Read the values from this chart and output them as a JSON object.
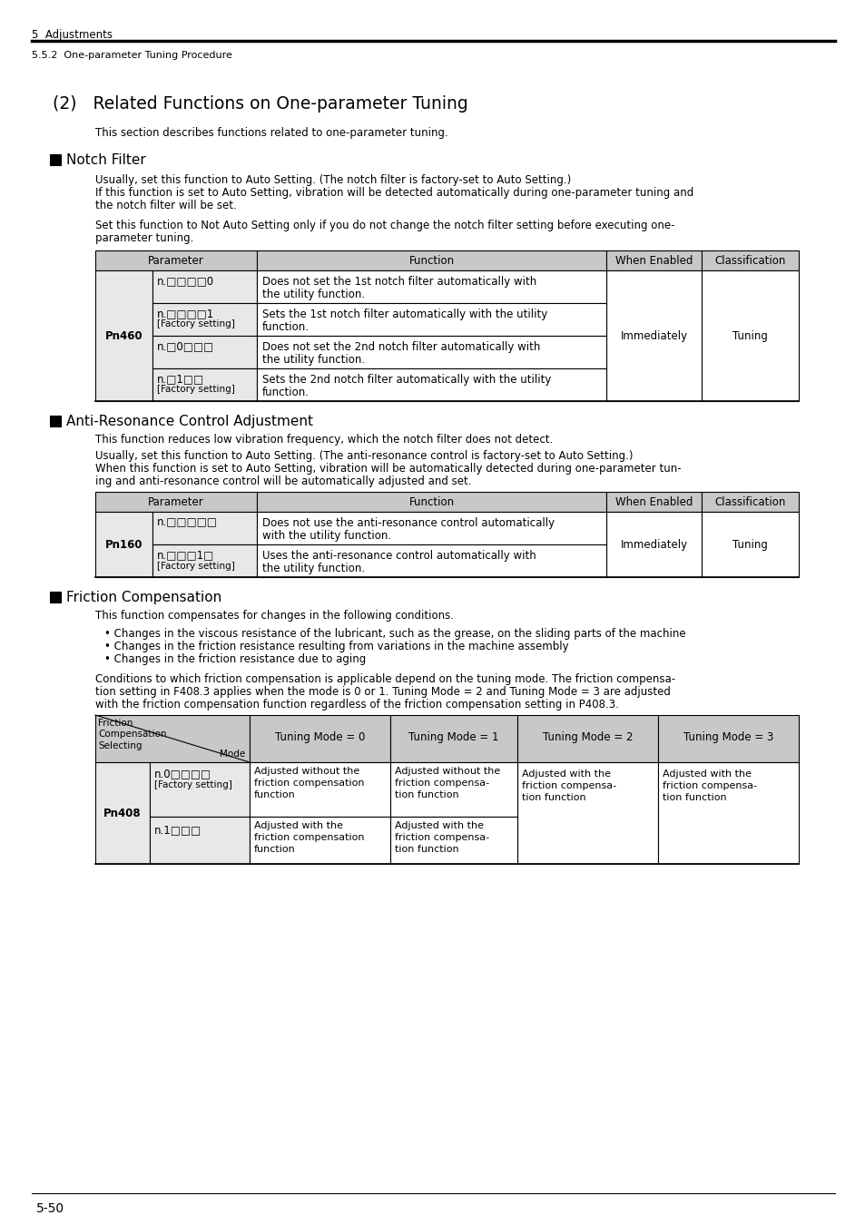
{
  "header_line1": "5  Adjustments",
  "header_line2": "5.5.2  One-parameter Tuning Procedure",
  "section_title": "(2)   Related Functions on One-parameter Tuning",
  "intro_text": "This section describes functions related to one-parameter tuning.",
  "section1_header": "Notch Filter",
  "section1_para1a": "Usually, set this function to Auto Setting. (The notch filter is factory-set to Auto Setting.)",
  "section1_para1b": "If this function is set to Auto Setting, vibration will be detected automatically during one-parameter tuning and",
  "section1_para1c": "the notch filter will be set.",
  "section1_para2a": "Set this function to Not Auto Setting only if you do not change the notch filter setting before executing one-",
  "section1_para2b": "parameter tuning.",
  "section2_header": "Anti-Resonance Control Adjustment",
  "section2_para1": "This function reduces low vibration frequency, which the notch filter does not detect.",
  "section2_para2a": "Usually, set this function to Auto Setting. (The anti-resonance control is factory-set to Auto Setting.)",
  "section2_para2b": "When this function is set to Auto Setting, vibration will be automatically detected during one-parameter tun-",
  "section2_para2c": "ing and anti-resonance control will be automatically adjusted and set.",
  "section3_header": "Friction Compensation",
  "section3_para1": "This function compensates for changes in the following conditions.",
  "section3_bullet1": "• Changes in the viscous resistance of the lubricant, such as the grease, on the sliding parts of the machine",
  "section3_bullet2": "• Changes in the friction resistance resulting from variations in the machine assembly",
  "section3_bullet3": "• Changes in the friction resistance due to aging",
  "section3_para2a": "Conditions to which friction compensation is applicable depend on the tuning mode. The friction compensa-",
  "section3_para2b": "tion setting in F408.3 applies when the mode is 0 or 1. Tuning Mode = 2 and Tuning Mode = 3 are adjusted",
  "section3_para2c": "with the friction compensation function regardless of the friction compensation setting in P408.3.",
  "footer_text": "5-50",
  "table_header_bg": "#c8c8c8",
  "table_cell_bg": "#e8e8e8",
  "pn460_rows": [
    {
      "sub": "n.□□□□0",
      "extra": "",
      "func": "Does not set the 1st notch filter automatically with\nthe utility function."
    },
    {
      "sub": "n.□□□□1",
      "extra": "[Factory setting]",
      "func": "Sets the 1st notch filter automatically with the utility\nfunction."
    },
    {
      "sub": "n.□0□□□",
      "extra": "",
      "func": "Does not set the 2nd notch filter automatically with\nthe utility function."
    },
    {
      "sub": "n.□1□□",
      "extra": "[Factory setting]",
      "func": "Sets the 2nd notch filter automatically with the utility\nfunction."
    }
  ],
  "pn160_rows": [
    {
      "sub": "n.□□□□□",
      "extra": "",
      "func": "Does not use the anti-resonance control automatically\nwith the utility function."
    },
    {
      "sub": "n.□□□1□",
      "extra": "[Factory setting]",
      "func": "Uses the anti-resonance control automatically with\nthe utility function."
    }
  ],
  "pn408_row1_sub": "n.0□□□□",
  "pn408_row1_extra": "[Factory setting]",
  "pn408_row1_c0": "Adjusted without the\nfriction compensation\nfunction",
  "pn408_row1_c1": "Adjusted without the\nfriction compensa-\ntion function",
  "pn408_row1_c23": "Adjusted with the\nfriction compensa-\ntion function",
  "pn408_row2_sub": "n.1□□□",
  "pn408_row2_c0": "Adjusted with the\nfriction compensation\nfunction",
  "pn408_row2_c1": "Adjusted with the\nfriction compensa-\ntion function"
}
